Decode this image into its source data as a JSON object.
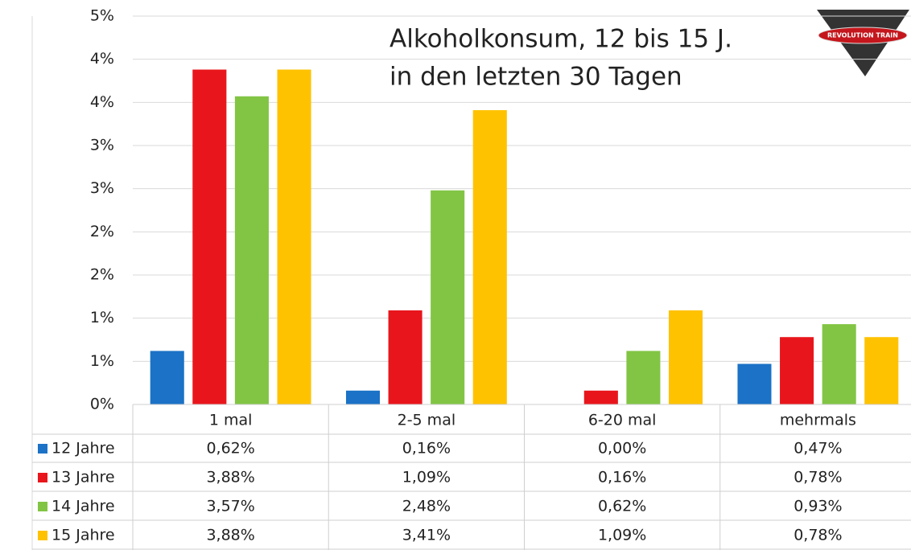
{
  "chart_data": {
    "type": "bar",
    "title": [
      "Alkoholkonsum, 12 bis 15 J.",
      "in den letzten 30 Tagen"
    ],
    "logo": "REVOLUTION TRAIN",
    "categories": [
      "1 mal",
      "2-5 mal",
      "6-20 mal",
      "mehrmals"
    ],
    "series": [
      {
        "name": "12 Jahre",
        "color": "#1b72c6",
        "values": [
          0.62,
          0.16,
          0.0,
          0.47
        ],
        "value_labels": [
          "0,62%",
          "0,16%",
          "0,00%",
          "0,47%"
        ]
      },
      {
        "name": "13 Jahre",
        "color": "#e8161c",
        "values": [
          3.88,
          1.09,
          0.16,
          0.78
        ],
        "value_labels": [
          "3,88%",
          "1,09%",
          "0,16%",
          "0,78%"
        ]
      },
      {
        "name": "14 Jahre",
        "color": "#82c544",
        "values": [
          3.57,
          2.48,
          0.62,
          0.93
        ],
        "value_labels": [
          "3,57%",
          "2,48%",
          "0,62%",
          "0,93%"
        ]
      },
      {
        "name": "15 Jahre",
        "color": "#ffc200",
        "values": [
          3.88,
          3.41,
          1.09,
          0.78
        ],
        "value_labels": [
          "3,88%",
          "3,41%",
          "1,09%",
          "0,78%"
        ]
      }
    ],
    "ylim": [
      0,
      4.5
    ],
    "yticks": [
      {
        "value": 0,
        "label": "0%"
      },
      {
        "value": 0.5,
        "label": "1%"
      },
      {
        "value": 1,
        "label": "1%"
      },
      {
        "value": 1.5,
        "label": "2%"
      },
      {
        "value": 2,
        "label": "2%"
      },
      {
        "value": 2.5,
        "label": "3%"
      },
      {
        "value": 3,
        "label": "3%"
      },
      {
        "value": 3.5,
        "label": "4%"
      },
      {
        "value": 4,
        "label": "4%"
      },
      {
        "value": 4.5,
        "label": "5%"
      }
    ],
    "grid": true
  }
}
